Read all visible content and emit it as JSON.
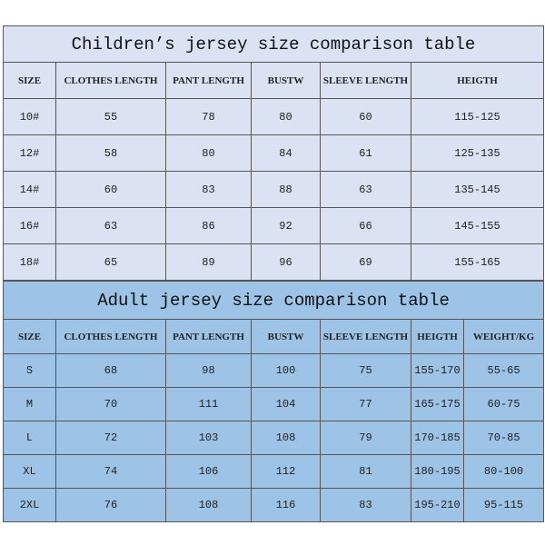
{
  "children": {
    "title": "Children’s jersey size comparison table",
    "headers": [
      "SIZE",
      "CLOTHES LENGTH",
      "PANT LENGTH",
      "BUSTW",
      "SLEEVE LENGTH",
      "HEIGTH"
    ],
    "rows": [
      [
        "10#",
        "55",
        "78",
        "80",
        "60",
        "115-125"
      ],
      [
        "12#",
        "58",
        "80",
        "84",
        "61",
        "125-135"
      ],
      [
        "14#",
        "60",
        "83",
        "88",
        "63",
        "135-145"
      ],
      [
        "16#",
        "63",
        "86",
        "92",
        "66",
        "145-155"
      ],
      [
        "18#",
        "65",
        "89",
        "96",
        "69",
        "155-165"
      ]
    ]
  },
  "adult": {
    "title": "Adult jersey size comparison table",
    "headers": [
      "SIZE",
      "CLOTHES LENGTH",
      "PANT LENGTH",
      "BUSTW",
      "SLEEVE LENGTH",
      "HEIGTH",
      "WEIGHT/KG"
    ],
    "rows": [
      [
        "S",
        "68",
        "98",
        "100",
        "75",
        "155-170",
        "55-65"
      ],
      [
        "M",
        "70",
        "111",
        "104",
        "77",
        "165-175",
        "60-75"
      ],
      [
        "L",
        "72",
        "103",
        "108",
        "79",
        "170-185",
        "70-85"
      ],
      [
        "XL",
        "74",
        "106",
        "112",
        "81",
        "180-195",
        "80-100"
      ],
      [
        "2XL",
        "76",
        "108",
        "116",
        "83",
        "195-210",
        "95-115"
      ]
    ]
  },
  "colors": {
    "children_bg": "#dae2f3",
    "adult_bg": "#9dc3e6",
    "border": "#555555"
  }
}
